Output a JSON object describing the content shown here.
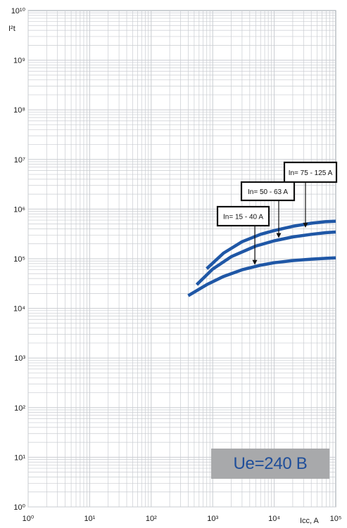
{
  "chart_data": {
    "type": "line",
    "title": "",
    "xlabel": "Icc, A",
    "ylabel": "I²t",
    "x_scale": "log",
    "y_scale": "log",
    "xlim": [
      1,
      100000
    ],
    "ylim": [
      1,
      10000000000
    ],
    "grid": true,
    "x_ticks": [
      "10⁰",
      "10¹",
      "10²",
      "10³",
      "10⁴",
      "10⁵"
    ],
    "y_ticks": [
      "10⁰",
      "10¹",
      "10²",
      "10³",
      "10⁴",
      "10⁵",
      "10⁶",
      "10⁷",
      "10⁸",
      "10⁹",
      "10¹⁰"
    ],
    "line_color": "#1f57a6",
    "series": [
      {
        "name": "In= 75 - 125 A",
        "x": [
          800,
          1500,
          3000,
          6000,
          10000,
          20000,
          40000,
          70000,
          100000
        ],
        "y": [
          63000,
          130000,
          220000,
          310000,
          370000,
          450000,
          520000,
          560000,
          570000
        ]
      },
      {
        "name": "In= 50 - 63 A",
        "x": [
          550,
          1000,
          2000,
          5000,
          10000,
          20000,
          40000,
          70000,
          100000
        ],
        "y": [
          30000,
          62000,
          110000,
          180000,
          230000,
          275000,
          310000,
          335000,
          345000
        ]
      },
      {
        "name": "In= 15 - 40 A",
        "x": [
          400,
          800,
          1500,
          3000,
          6000,
          10000,
          20000,
          40000,
          70000,
          100000
        ],
        "y": [
          18000,
          30000,
          44000,
          60000,
          74000,
          83000,
          92000,
          98000,
          102000,
          104000
        ]
      }
    ],
    "annotations": [
      {
        "text": "In= 75 - 125 A",
        "arrow_to": [
          10000,
          370000
        ]
      },
      {
        "text": "In= 50 - 63 A",
        "arrow_to": [
          10000,
          230000
        ]
      },
      {
        "text": "In= 15 - 40 A",
        "arrow_to": [
          3800,
          66000
        ]
      }
    ]
  },
  "badge": {
    "text": "Ue=240 B"
  }
}
